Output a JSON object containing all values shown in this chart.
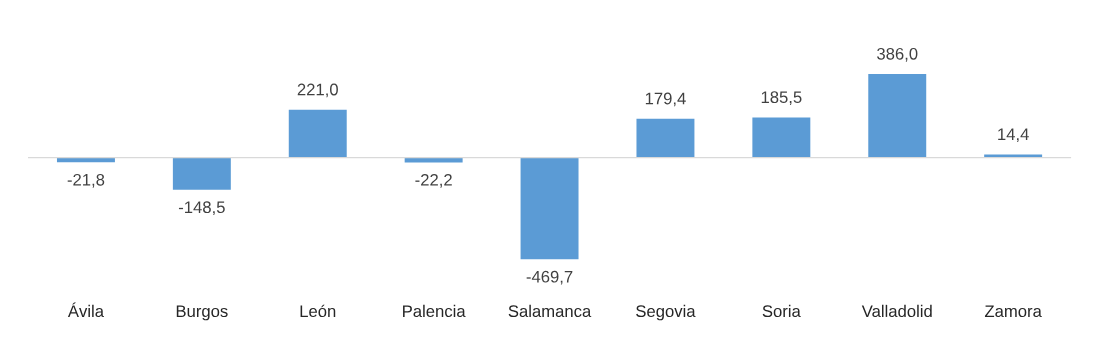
{
  "chart_data": {
    "type": "bar",
    "categories": [
      "Ávila",
      "Burgos",
      "León",
      "Palencia",
      "Salamanca",
      "Segovia",
      "Soria",
      "Valladolid",
      "Zamora"
    ],
    "values": [
      -21.8,
      -148.5,
      221.0,
      -22.2,
      -469.7,
      179.4,
      185.5,
      386.0,
      14.4
    ],
    "value_labels": [
      "-21,8",
      "-148,5",
      "221,0",
      "-22,2",
      "-469,7",
      "179,4",
      "185,5",
      "386,0",
      "14,4"
    ],
    "color": "#5b9bd5",
    "grid": false,
    "legend": false
  }
}
